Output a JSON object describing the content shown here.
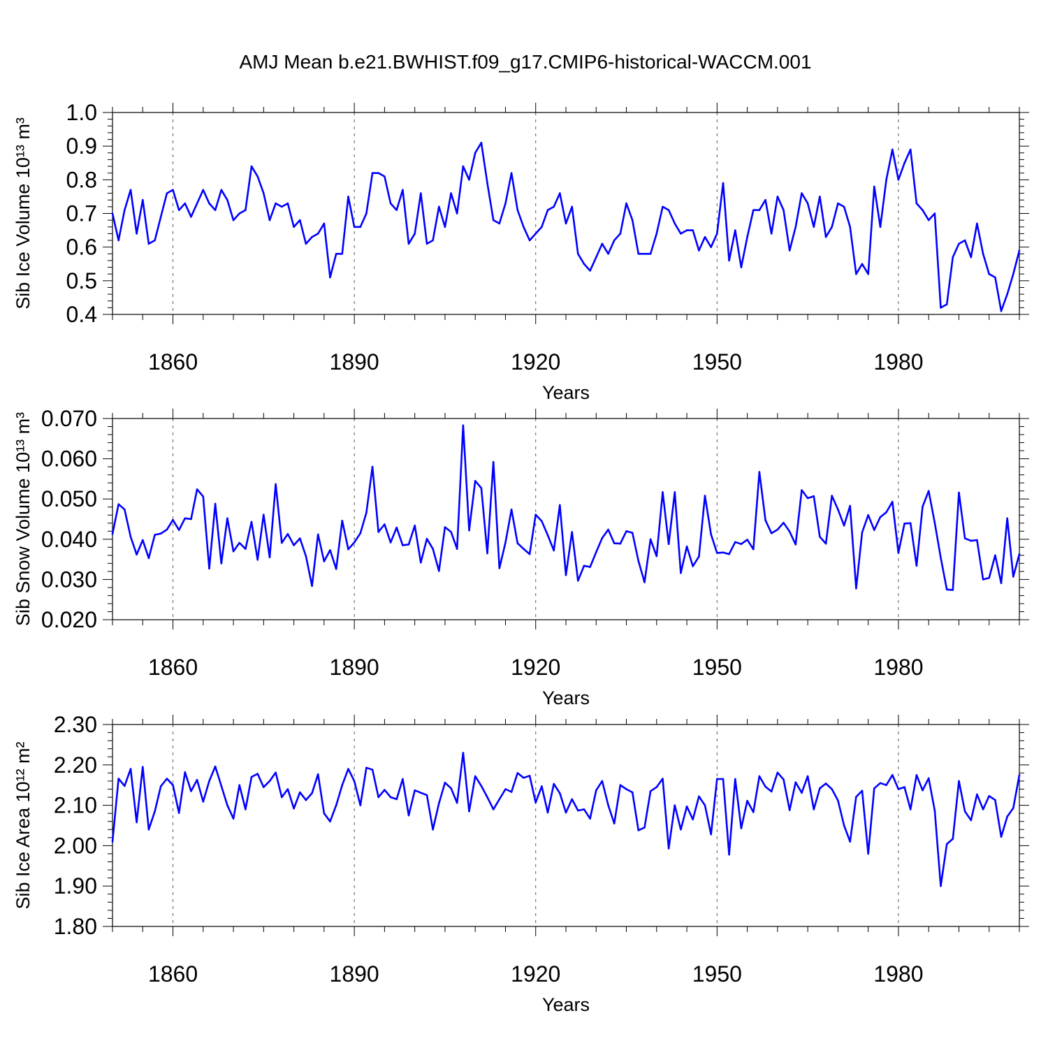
{
  "figure_title": "AMJ Mean b.e21.BWHIST.f09_g17.CMIP6-historical-WACCM.001",
  "line_color": "#0000ff",
  "chart_data": [
    {
      "type": "line",
      "title": "AMJ Mean b.e21.BWHIST.f09_g17.CMIP6-historical-WACCM.001",
      "xlabel": "Years",
      "ylabel": "Sib Ice Volume 10¹³ m³",
      "xlim": [
        1850,
        2000
      ],
      "ylim": [
        0.4,
        1.0
      ],
      "xticks": [
        1860,
        1890,
        1920,
        1950,
        1980
      ],
      "yticks": [
        0.4,
        0.5,
        0.6,
        0.7,
        0.8,
        0.9,
        1.0
      ],
      "ytick_labels": [
        "0.4",
        "0.5",
        "0.6",
        "0.7",
        "0.8",
        "0.9",
        "1.0"
      ],
      "x_start": 1850,
      "series": [
        {
          "name": "Sib Ice Volume",
          "values": [
            0.7,
            0.62,
            0.71,
            0.77,
            0.64,
            0.74,
            0.61,
            0.62,
            0.69,
            0.76,
            0.77,
            0.71,
            0.73,
            0.69,
            0.73,
            0.77,
            0.73,
            0.71,
            0.77,
            0.74,
            0.68,
            0.7,
            0.71,
            0.84,
            0.81,
            0.76,
            0.68,
            0.73,
            0.72,
            0.73,
            0.66,
            0.68,
            0.61,
            0.63,
            0.64,
            0.67,
            0.51,
            0.58,
            0.58,
            0.75,
            0.66,
            0.66,
            0.7,
            0.82,
            0.82,
            0.81,
            0.73,
            0.71,
            0.77,
            0.61,
            0.64,
            0.76,
            0.61,
            0.62,
            0.72,
            0.66,
            0.76,
            0.7,
            0.84,
            0.8,
            0.88,
            0.91,
            0.79,
            0.68,
            0.67,
            0.73,
            0.82,
            0.71,
            0.66,
            0.62,
            0.64,
            0.66,
            0.71,
            0.72,
            0.76,
            0.67,
            0.72,
            0.58,
            0.55,
            0.53,
            0.57,
            0.61,
            0.58,
            0.62,
            0.64,
            0.73,
            0.68,
            0.58,
            0.58,
            0.58,
            0.64,
            0.72,
            0.71,
            0.67,
            0.64,
            0.65,
            0.65,
            0.59,
            0.63,
            0.6,
            0.64,
            0.79,
            0.56,
            0.65,
            0.54,
            0.63,
            0.71,
            0.71,
            0.74,
            0.64,
            0.75,
            0.71,
            0.59,
            0.66,
            0.76,
            0.73,
            0.66,
            0.75,
            0.63,
            0.66,
            0.73,
            0.72,
            0.66,
            0.52,
            0.55,
            0.52,
            0.78,
            0.66,
            0.8,
            0.89,
            0.8,
            0.85,
            0.89,
            0.73,
            0.71,
            0.68,
            0.7,
            0.42,
            0.43,
            0.57,
            0.61,
            0.62,
            0.57,
            0.67,
            0.58,
            0.52,
            0.51,
            0.41,
            0.46,
            0.52,
            0.59
          ]
        }
      ]
    },
    {
      "type": "line",
      "xlabel": "Years",
      "ylabel": "Sib Snow Volume 10¹³ m³",
      "xlim": [
        1850,
        2000
      ],
      "ylim": [
        0.02,
        0.07
      ],
      "xticks": [
        1860,
        1890,
        1920,
        1950,
        1980
      ],
      "yticks": [
        0.02,
        0.03,
        0.04,
        0.05,
        0.06,
        0.07
      ],
      "ytick_labels": [
        "0.020",
        "0.030",
        "0.040",
        "0.050",
        "0.060",
        "0.070"
      ],
      "x_start": 1850,
      "series": [
        {
          "name": "Sib Snow Volume",
          "values": [
            0.0413,
            0.0487,
            0.0474,
            0.0406,
            0.0362,
            0.0398,
            0.0353,
            0.0411,
            0.0414,
            0.0424,
            0.0448,
            0.0423,
            0.0452,
            0.045,
            0.0524,
            0.0506,
            0.0327,
            0.0488,
            0.034,
            0.0452,
            0.037,
            0.0391,
            0.0376,
            0.0443,
            0.0349,
            0.0461,
            0.0355,
            0.0537,
            0.0391,
            0.0413,
            0.0385,
            0.0402,
            0.0358,
            0.0284,
            0.0412,
            0.0345,
            0.0373,
            0.0326,
            0.0446,
            0.0375,
            0.0392,
            0.0415,
            0.0466,
            0.058,
            0.0418,
            0.0437,
            0.0392,
            0.0429,
            0.0385,
            0.0387,
            0.0434,
            0.0342,
            0.0401,
            0.0376,
            0.0321,
            0.043,
            0.0418,
            0.0376,
            0.0683,
            0.0422,
            0.0545,
            0.0527,
            0.0365,
            0.0592,
            0.0328,
            0.0392,
            0.0474,
            0.039,
            0.0376,
            0.0363,
            0.0461,
            0.0445,
            0.041,
            0.0372,
            0.0485,
            0.0311,
            0.0418,
            0.0297,
            0.0334,
            0.0331,
            0.0368,
            0.0403,
            0.0424,
            0.039,
            0.0389,
            0.042,
            0.0416,
            0.0346,
            0.0293,
            0.04,
            0.0358,
            0.0517,
            0.0388,
            0.0517,
            0.0316,
            0.0382,
            0.0333,
            0.0357,
            0.0508,
            0.0412,
            0.0366,
            0.0367,
            0.0363,
            0.0393,
            0.0388,
            0.0399,
            0.0375,
            0.0567,
            0.0447,
            0.0415,
            0.0424,
            0.0441,
            0.0419,
            0.0387,
            0.0522,
            0.0502,
            0.0507,
            0.0406,
            0.0389,
            0.0508,
            0.0474,
            0.0434,
            0.0483,
            0.0278,
            0.0417,
            0.046,
            0.0423,
            0.0455,
            0.0467,
            0.0493,
            0.0366,
            0.0439,
            0.044,
            0.0334,
            0.0481,
            0.052,
            0.0441,
            0.0354,
            0.0275,
            0.0274,
            0.0516,
            0.0402,
            0.0396,
            0.0398,
            0.03,
            0.0304,
            0.036,
            0.0291,
            0.0452,
            0.0307,
            0.0363
          ]
        }
      ]
    },
    {
      "type": "line",
      "xlabel": "Years",
      "ylabel": "Sib Ice Area 10¹² m²",
      "xlim": [
        1850,
        2000
      ],
      "ylim": [
        1.8,
        2.3
      ],
      "xticks": [
        1860,
        1890,
        1920,
        1950,
        1980
      ],
      "yticks": [
        1.8,
        1.9,
        2.0,
        2.1,
        2.2,
        2.3
      ],
      "ytick_labels": [
        "1.80",
        "1.90",
        "2.00",
        "2.10",
        "2.20",
        "2.30"
      ],
      "x_start": 1850,
      "series": [
        {
          "name": "Sib Ice Area",
          "values": [
            2.01,
            2.166,
            2.148,
            2.19,
            2.058,
            2.195,
            2.04,
            2.085,
            2.147,
            2.166,
            2.15,
            2.081,
            2.182,
            2.135,
            2.163,
            2.109,
            2.16,
            2.196,
            2.148,
            2.1,
            2.067,
            2.15,
            2.09,
            2.17,
            2.178,
            2.145,
            2.16,
            2.181,
            2.12,
            2.14,
            2.092,
            2.132,
            2.113,
            2.13,
            2.177,
            2.08,
            2.06,
            2.1,
            2.15,
            2.19,
            2.16,
            2.1,
            2.193,
            2.188,
            2.12,
            2.138,
            2.12,
            2.115,
            2.165,
            2.075,
            2.137,
            2.131,
            2.125,
            2.04,
            2.105,
            2.156,
            2.142,
            2.106,
            2.23,
            2.085,
            2.172,
            2.148,
            2.12,
            2.09,
            2.115,
            2.14,
            2.133,
            2.18,
            2.168,
            2.173,
            2.107,
            2.147,
            2.082,
            2.153,
            2.13,
            2.082,
            2.115,
            2.087,
            2.09,
            2.067,
            2.137,
            2.16,
            2.1,
            2.055,
            2.15,
            2.14,
            2.132,
            2.038,
            2.045,
            2.135,
            2.145,
            2.166,
            1.993,
            2.1,
            2.04,
            2.097,
            2.065,
            2.122,
            2.1,
            2.028,
            2.165,
            2.165,
            1.978,
            2.165,
            2.043,
            2.111,
            2.083,
            2.172,
            2.146,
            2.134,
            2.181,
            2.164,
            2.088,
            2.157,
            2.131,
            2.172,
            2.09,
            2.142,
            2.154,
            2.14,
            2.112,
            2.05,
            2.01,
            2.121,
            2.136,
            1.98,
            2.142,
            2.155,
            2.15,
            2.175,
            2.14,
            2.145,
            2.09,
            2.175,
            2.137,
            2.167,
            2.087,
            1.9,
            2.004,
            2.017,
            2.16,
            2.085,
            2.063,
            2.127,
            2.09,
            2.123,
            2.113,
            2.022,
            2.072,
            2.093,
            2.175
          ]
        }
      ]
    }
  ]
}
